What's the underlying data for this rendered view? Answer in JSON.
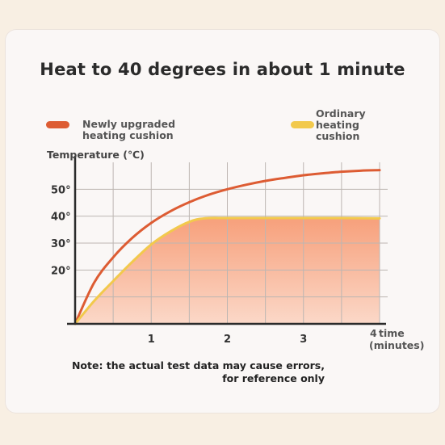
{
  "chart_data": {
    "type": "line",
    "title": "Heat to 40 degrees in about 1 minute",
    "ylabel": "Temperature (℃)",
    "xlabel": "time (minutes)",
    "x_ticks": [
      "1",
      "2",
      "3",
      "4"
    ],
    "y_ticks": [
      "20°",
      "30°",
      "40°",
      "50°"
    ],
    "xlim": [
      0,
      4
    ],
    "ylim": [
      0,
      60
    ],
    "grid": true,
    "legend_position": "top",
    "series": [
      {
        "name": "Newly upgraded heating cushion",
        "color": "#dd5c33",
        "x": [
          0,
          0.25,
          0.5,
          0.75,
          1,
          1.25,
          1.5,
          1.75,
          2,
          2.25,
          2.5,
          2.75,
          3,
          3.25,
          3.5,
          3.75,
          4
        ],
        "y": [
          0,
          15.3,
          24.7,
          31.9,
          37.5,
          41.8,
          45.2,
          47.9,
          50.0,
          51.7,
          53.1,
          54.2,
          55.2,
          55.9,
          56.5,
          56.9,
          57.1
        ]
      },
      {
        "name": "Ordinary heating cushion",
        "color": "#f2c94c",
        "x": [
          0,
          0.25,
          0.5,
          0.75,
          1,
          1.25,
          1.5,
          1.7,
          2,
          2.5,
          3,
          3.5,
          4
        ],
        "y": [
          0,
          8.5,
          15.9,
          23.0,
          29.5,
          34.3,
          37.9,
          39.2,
          39.3,
          39.3,
          39.3,
          39.3,
          39.2
        ]
      }
    ]
  },
  "note": "Note: the actual test data may cause errors, for reference only",
  "colors": {
    "fill_top": "#f7a07b",
    "fill_bottom": "#fbd8c8",
    "grid": "#bdb6b2",
    "axis": "#2b2b2b"
  }
}
